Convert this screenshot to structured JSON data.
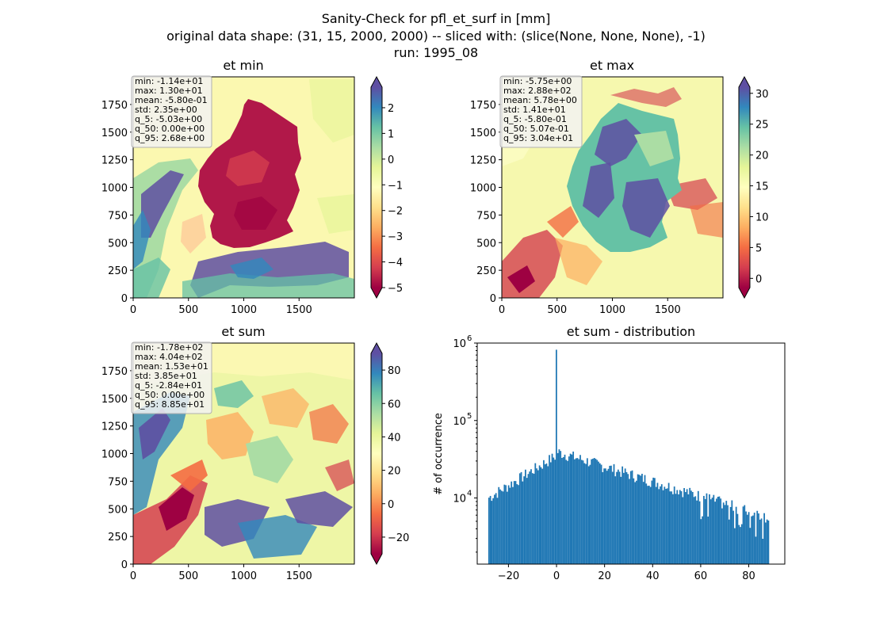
{
  "figure": {
    "title_lines": [
      "Sanity-Check for pfl_et_surf in [mm]",
      "original data shape: (31, 15, 2000, 2000) -- sliced with: (slice(None, None, None), -1)",
      "run: 1995_08"
    ]
  },
  "chart_data": [
    {
      "type": "heatmap",
      "title": "et min",
      "colormap": "Spectral",
      "x_ticks": [
        "0",
        "500",
        "1000",
        "1500"
      ],
      "y_ticks": [
        "0",
        "250",
        "500",
        "750",
        "1000",
        "1250",
        "1500",
        "1750"
      ],
      "xlim": [
        0,
        2000
      ],
      "ylim": [
        0,
        2000
      ],
      "colorbar": {
        "range": [
          -5,
          2.8
        ],
        "ticks": [
          "2",
          "1",
          "0",
          "−1",
          "−2",
          "−3",
          "−4",
          "−5"
        ],
        "tick_values": [
          2,
          1,
          0,
          -1,
          -2,
          -3,
          -4,
          -5
        ],
        "extend": "both"
      },
      "stats": [
        "min: -1.14e+01",
        "max: 1.30e+01",
        "mean: -5.80e-01",
        "std: 2.35e+00",
        "q_5: -5.03e+00",
        "q_50: 0.00e+00",
        "q_95: 2.68e+00"
      ]
    },
    {
      "type": "heatmap",
      "title": "et max",
      "colormap": "Spectral",
      "x_ticks": [
        "0",
        "500",
        "1000",
        "1500"
      ],
      "y_ticks": [
        "0",
        "250",
        "500",
        "750",
        "1000",
        "1250",
        "1500",
        "1750"
      ],
      "xlim": [
        0,
        2000
      ],
      "ylim": [
        0,
        2000
      ],
      "colorbar": {
        "range": [
          -1.5,
          31
        ],
        "ticks": [
          "30",
          "25",
          "20",
          "15",
          "10",
          "5",
          "0"
        ],
        "tick_values": [
          30,
          25,
          20,
          15,
          10,
          5,
          0
        ],
        "extend": "both"
      },
      "stats": [
        "min: -5.75e+00",
        "max: 2.88e+02",
        "mean: 5.78e+00",
        "std: 1.41e+01",
        "q_5: -5.80e-01",
        "q_50: 5.07e-01",
        "q_95: 3.04e+01"
      ]
    },
    {
      "type": "heatmap",
      "title": "et sum",
      "colormap": "Spectral",
      "x_ticks": [
        "0",
        "500",
        "1000",
        "1500"
      ],
      "y_ticks": [
        "0",
        "250",
        "500",
        "750",
        "1000",
        "1250",
        "1500",
        "1750"
      ],
      "xlim": [
        0,
        2000
      ],
      "ylim": [
        0,
        2000
      ],
      "colorbar": {
        "range": [
          -30,
          90
        ],
        "ticks": [
          "80",
          "60",
          "40",
          "20",
          "0",
          "−20"
        ],
        "tick_values": [
          80,
          60,
          40,
          20,
          0,
          -20
        ],
        "extend": "both"
      },
      "stats": [
        "min: -1.78e+02",
        "max: 4.04e+02",
        "mean: 1.53e+01",
        "std: 3.85e+01",
        "q_5: -2.84e+01",
        "q_50: 0.00e+00",
        "q_95: 8.85e+01"
      ]
    },
    {
      "type": "bar",
      "title": "et sum - distribution",
      "ylabel": "# of occurrence",
      "yscale": "log",
      "xlim": [
        -33,
        95
      ],
      "ylim": [
        1400,
        1000000
      ],
      "x_ticks": [
        "−20",
        "0",
        "20",
        "40",
        "60",
        "80"
      ],
      "x_tick_values": [
        -20,
        0,
        20,
        40,
        60,
        80
      ],
      "y_ticks": [
        {
          "base": "10",
          "exp": "4",
          "value": 10000
        },
        {
          "base": "10",
          "exp": "5",
          "value": 100000
        },
        {
          "base": "10",
          "exp": "6",
          "value": 1000000
        }
      ],
      "bar_color": "#1f77b4",
      "hist_range": [
        -28.4,
        88.5
      ],
      "peak": {
        "x": 0,
        "count": 820000
      }
    }
  ]
}
